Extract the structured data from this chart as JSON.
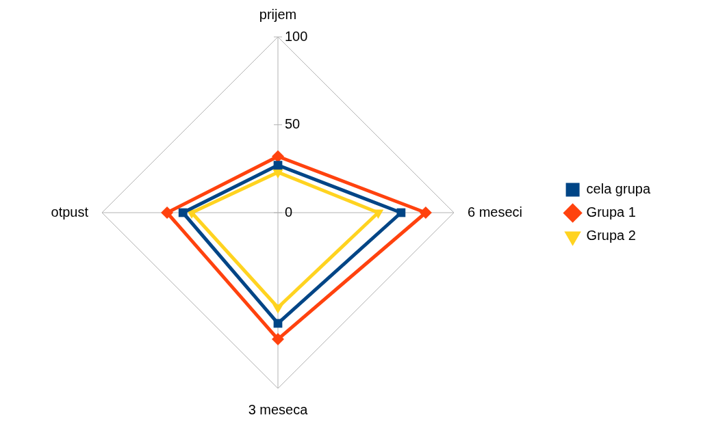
{
  "chart_data": {
    "type": "radar",
    "categories": [
      "prijem",
      "6 meseci",
      "3 meseca",
      "otpust"
    ],
    "series": [
      {
        "name": "cela grupa",
        "color": "#004586",
        "marker": "square",
        "values": [
          27,
          70,
          63,
          54
        ]
      },
      {
        "name": "Grupa 1",
        "color": "#ff420e",
        "marker": "diamond",
        "values": [
          32,
          84,
          72,
          63
        ]
      },
      {
        "name": "Grupa 2",
        "color": "#ffd320",
        "marker": "triangle",
        "values": [
          23,
          57,
          54,
          49
        ]
      }
    ],
    "ylim": [
      0,
      100
    ],
    "yticks": [
      0,
      50,
      100
    ],
    "grid": true,
    "legend": "right"
  }
}
